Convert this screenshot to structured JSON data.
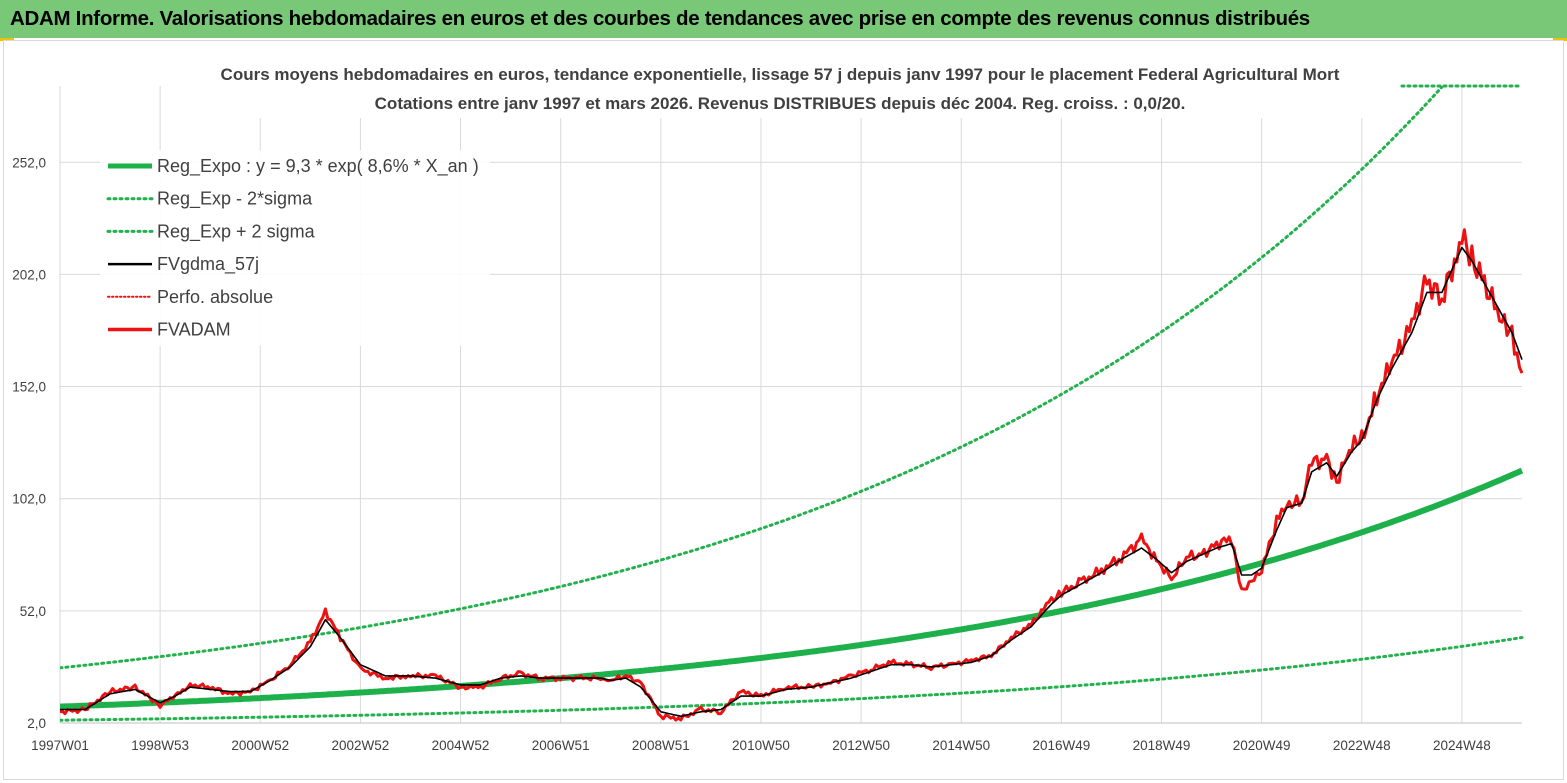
{
  "banner": {
    "title": "ADAM Informe. Valorisations hebdomadaires en euros et des courbes de tendances avec prise en compte des revenus connus distribués"
  },
  "colors": {
    "banner_bg": "#78c878",
    "trend_green": "#1db04b",
    "band_green": "#22b14c",
    "smooth_black": "#000000",
    "price_red": "#ee1111",
    "grid": "#d9d9d9"
  },
  "chart_data": {
    "type": "line",
    "title": [
      "Cours moyens hebdomadaires en euros, tendance exponentielle, lissage 57 j depuis janv 1997 pour le placement Federal Agricultural Mort",
      "Cotations entre janv 1997 et mars 2026. Revenus DISTRIBUES depuis déc 2004. Reg. croiss. : 0,0/20."
    ],
    "xlabel": "",
    "ylabel": "",
    "x_range": [
      1997.0,
      2026.2
    ],
    "ylim": [
      2.0,
      286.0
    ],
    "y_ticks": [
      2.0,
      52.0,
      102.0,
      152.0,
      202.0,
      252.0
    ],
    "y_tick_labels": [
      "2,0",
      "52,0",
      "102,0",
      "152,0",
      "202,0",
      "252,0"
    ],
    "x_ticks": [
      {
        "label": "1997W01",
        "t": 1997.0
      },
      {
        "label": "1998W53",
        "t": 1999.0
      },
      {
        "label": "2000W52",
        "t": 2001.0
      },
      {
        "label": "2002W52",
        "t": 2003.0
      },
      {
        "label": "2004W52",
        "t": 2005.0
      },
      {
        "label": "2006W51",
        "t": 2007.0
      },
      {
        "label": "2008W51",
        "t": 2009.0
      },
      {
        "label": "2010W50",
        "t": 2011.0
      },
      {
        "label": "2012W50",
        "t": 2013.0
      },
      {
        "label": "2014W50",
        "t": 2015.0
      },
      {
        "label": "2016W49",
        "t": 2017.0
      },
      {
        "label": "2018W49",
        "t": 2019.0
      },
      {
        "label": "2020W49",
        "t": 2021.0
      },
      {
        "label": "2022W48",
        "t": 2023.0
      },
      {
        "label": "2024W48",
        "t": 2025.0
      }
    ],
    "legend": [
      {
        "key": "reg_expo",
        "label": "Reg_Expo : y = 9,3 * exp( 8,6% *  X_an )"
      },
      {
        "key": "reg_minus",
        "label": "Reg_Exp - 2*sigma"
      },
      {
        "key": "reg_plus",
        "label": "Reg_Exp + 2 sigma"
      },
      {
        "key": "smooth",
        "label": "FVgdma_57j"
      },
      {
        "key": "perfo",
        "label": "Perfo. absolue"
      },
      {
        "key": "price",
        "label": "FVADAM"
      }
    ],
    "regression": {
      "a": 9.3,
      "rate": 0.086,
      "t0": 1997.0,
      "lower_factor": 0.35,
      "upper_factor": 2.86
    },
    "series": [
      {
        "name": "FVADAM",
        "x": [
          1997.0,
          1997.5,
          1998.0,
          1998.5,
          1999.0,
          1999.3,
          1999.6,
          2000.0,
          2000.4,
          2000.8,
          2001.2,
          2001.6,
          2002.0,
          2002.3,
          2002.6,
          2003.0,
          2003.5,
          2004.0,
          2004.5,
          2005.0,
          2005.4,
          2005.8,
          2006.2,
          2006.6,
          2007.0,
          2007.4,
          2007.8,
          2008.0,
          2008.3,
          2008.6,
          2009.0,
          2009.4,
          2009.8,
          2010.2,
          2010.6,
          2011.0,
          2011.5,
          2012.0,
          2012.4,
          2012.8,
          2013.2,
          2013.6,
          2014.0,
          2014.4,
          2014.8,
          2015.2,
          2015.6,
          2016.0,
          2016.4,
          2016.8,
          2017.0,
          2017.4,
          2017.8,
          2018.2,
          2018.6,
          2018.9,
          2019.2,
          2019.5,
          2019.8,
          2020.1,
          2020.4,
          2020.6,
          2020.8,
          2021.0,
          2021.3,
          2021.5,
          2021.8,
          2022.0,
          2022.3,
          2022.5,
          2022.8,
          2023.0,
          2023.3,
          2023.6,
          2024.0,
          2024.3,
          2024.6,
          2025.0,
          2025.2,
          2025.5,
          2025.8,
          2026.0,
          2026.2
        ],
        "values": [
          7,
          8,
          16,
          18,
          10,
          14,
          19,
          18,
          15,
          16,
          21,
          28,
          38,
          52,
          40,
          26,
          22,
          23,
          23,
          18,
          18,
          22,
          24,
          22,
          22,
          22,
          22,
          21,
          23,
          20,
          5,
          4,
          8,
          7,
          16,
          14,
          18,
          18,
          20,
          23,
          26,
          29,
          28,
          27,
          28,
          30,
          32,
          40,
          46,
          57,
          60,
          65,
          70,
          76,
          84,
          75,
          66,
          76,
          77,
          82,
          84,
          60,
          66,
          70,
          92,
          100,
          100,
          118,
          120,
          110,
          125,
          128,
          148,
          162,
          180,
          200,
          190,
          218,
          210,
          196,
          180,
          175,
          158
        ]
      },
      {
        "name": "FVgdma_57j",
        "x": [
          1997.0,
          1997.5,
          1998.0,
          1998.5,
          1999.0,
          1999.3,
          1999.6,
          2000.0,
          2000.4,
          2000.8,
          2001.2,
          2001.6,
          2002.0,
          2002.3,
          2002.6,
          2003.0,
          2003.5,
          2004.0,
          2004.5,
          2005.0,
          2005.4,
          2005.8,
          2006.2,
          2006.6,
          2007.0,
          2007.4,
          2007.8,
          2008.0,
          2008.3,
          2008.6,
          2009.0,
          2009.4,
          2009.8,
          2010.2,
          2010.6,
          2011.0,
          2011.5,
          2012.0,
          2012.4,
          2012.8,
          2013.2,
          2013.6,
          2014.0,
          2014.4,
          2014.8,
          2015.2,
          2015.6,
          2016.0,
          2016.4,
          2016.8,
          2017.0,
          2017.4,
          2017.8,
          2018.2,
          2018.6,
          2018.9,
          2019.2,
          2019.5,
          2019.8,
          2020.1,
          2020.4,
          2020.6,
          2020.8,
          2021.0,
          2021.3,
          2021.5,
          2021.8,
          2022.0,
          2022.3,
          2022.5,
          2022.8,
          2023.0,
          2023.3,
          2023.6,
          2024.0,
          2024.3,
          2024.6,
          2025.0,
          2025.2,
          2025.5,
          2025.8,
          2026.0,
          2026.2
        ],
        "values": [
          8,
          8,
          15,
          17,
          11,
          14,
          18,
          17,
          16,
          16,
          21,
          27,
          36,
          48,
          40,
          28,
          23,
          23,
          22,
          19,
          19,
          22,
          23,
          22,
          22,
          22,
          22,
          21,
          22,
          18,
          7,
          5,
          7,
          8,
          14,
          14,
          17,
          18,
          20,
          22,
          25,
          28,
          28,
          27,
          28,
          29,
          32,
          39,
          45,
          55,
          59,
          64,
          69,
          75,
          80,
          75,
          69,
          74,
          77,
          80,
          82,
          68,
          68,
          71,
          88,
          98,
          100,
          114,
          118,
          112,
          123,
          128,
          146,
          160,
          176,
          194,
          194,
          214,
          208,
          196,
          184,
          176,
          164
        ]
      }
    ]
  }
}
